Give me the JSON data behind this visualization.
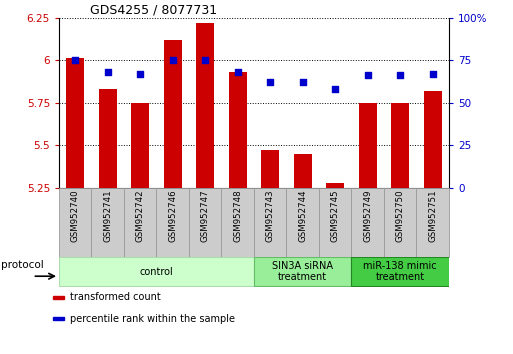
{
  "title": "GDS4255 / 8077731",
  "samples": [
    "GSM952740",
    "GSM952741",
    "GSM952742",
    "GSM952746",
    "GSM952747",
    "GSM952748",
    "GSM952743",
    "GSM952744",
    "GSM952745",
    "GSM952749",
    "GSM952750",
    "GSM952751"
  ],
  "bar_values": [
    6.01,
    5.83,
    5.75,
    6.12,
    6.22,
    5.93,
    5.47,
    5.45,
    5.28,
    5.75,
    5.75,
    5.82
  ],
  "dot_values": [
    75,
    68,
    67,
    75,
    75,
    68,
    62,
    62,
    58,
    66,
    66,
    67
  ],
  "bar_color": "#cc0000",
  "dot_color": "#0000cc",
  "ylim_left": [
    5.25,
    6.25
  ],
  "ylim_right": [
    0,
    100
  ],
  "yticks_left": [
    5.25,
    5.5,
    5.75,
    6.0,
    6.25
  ],
  "yticks_right": [
    0,
    25,
    50,
    75,
    100
  ],
  "ytick_labels_left": [
    "5.25",
    "5.5",
    "5.75",
    "6",
    "6.25"
  ],
  "ytick_labels_right": [
    "0",
    "25",
    "50",
    "75",
    "100%"
  ],
  "groups": [
    {
      "label": "control",
      "start": 0,
      "end": 6,
      "color": "#ccffcc",
      "edge_color": "#aaddaa"
    },
    {
      "label": "SIN3A siRNA\ntreatment",
      "start": 6,
      "end": 9,
      "color": "#99ee99",
      "edge_color": "#66bb66"
    },
    {
      "label": "miR-138 mimic\ntreatment",
      "start": 9,
      "end": 12,
      "color": "#44cc44",
      "edge_color": "#228822"
    }
  ],
  "legend_items": [
    {
      "label": "transformed count",
      "color": "#cc0000"
    },
    {
      "label": "percentile rank within the sample",
      "color": "#0000cc"
    }
  ],
  "protocol_label": "protocol",
  "tick_label_color_left": "#cc0000",
  "tick_label_color_right": "#0000cc",
  "bar_width": 0.55,
  "sample_box_color": "#cccccc",
  "sample_box_edge": "#999999"
}
